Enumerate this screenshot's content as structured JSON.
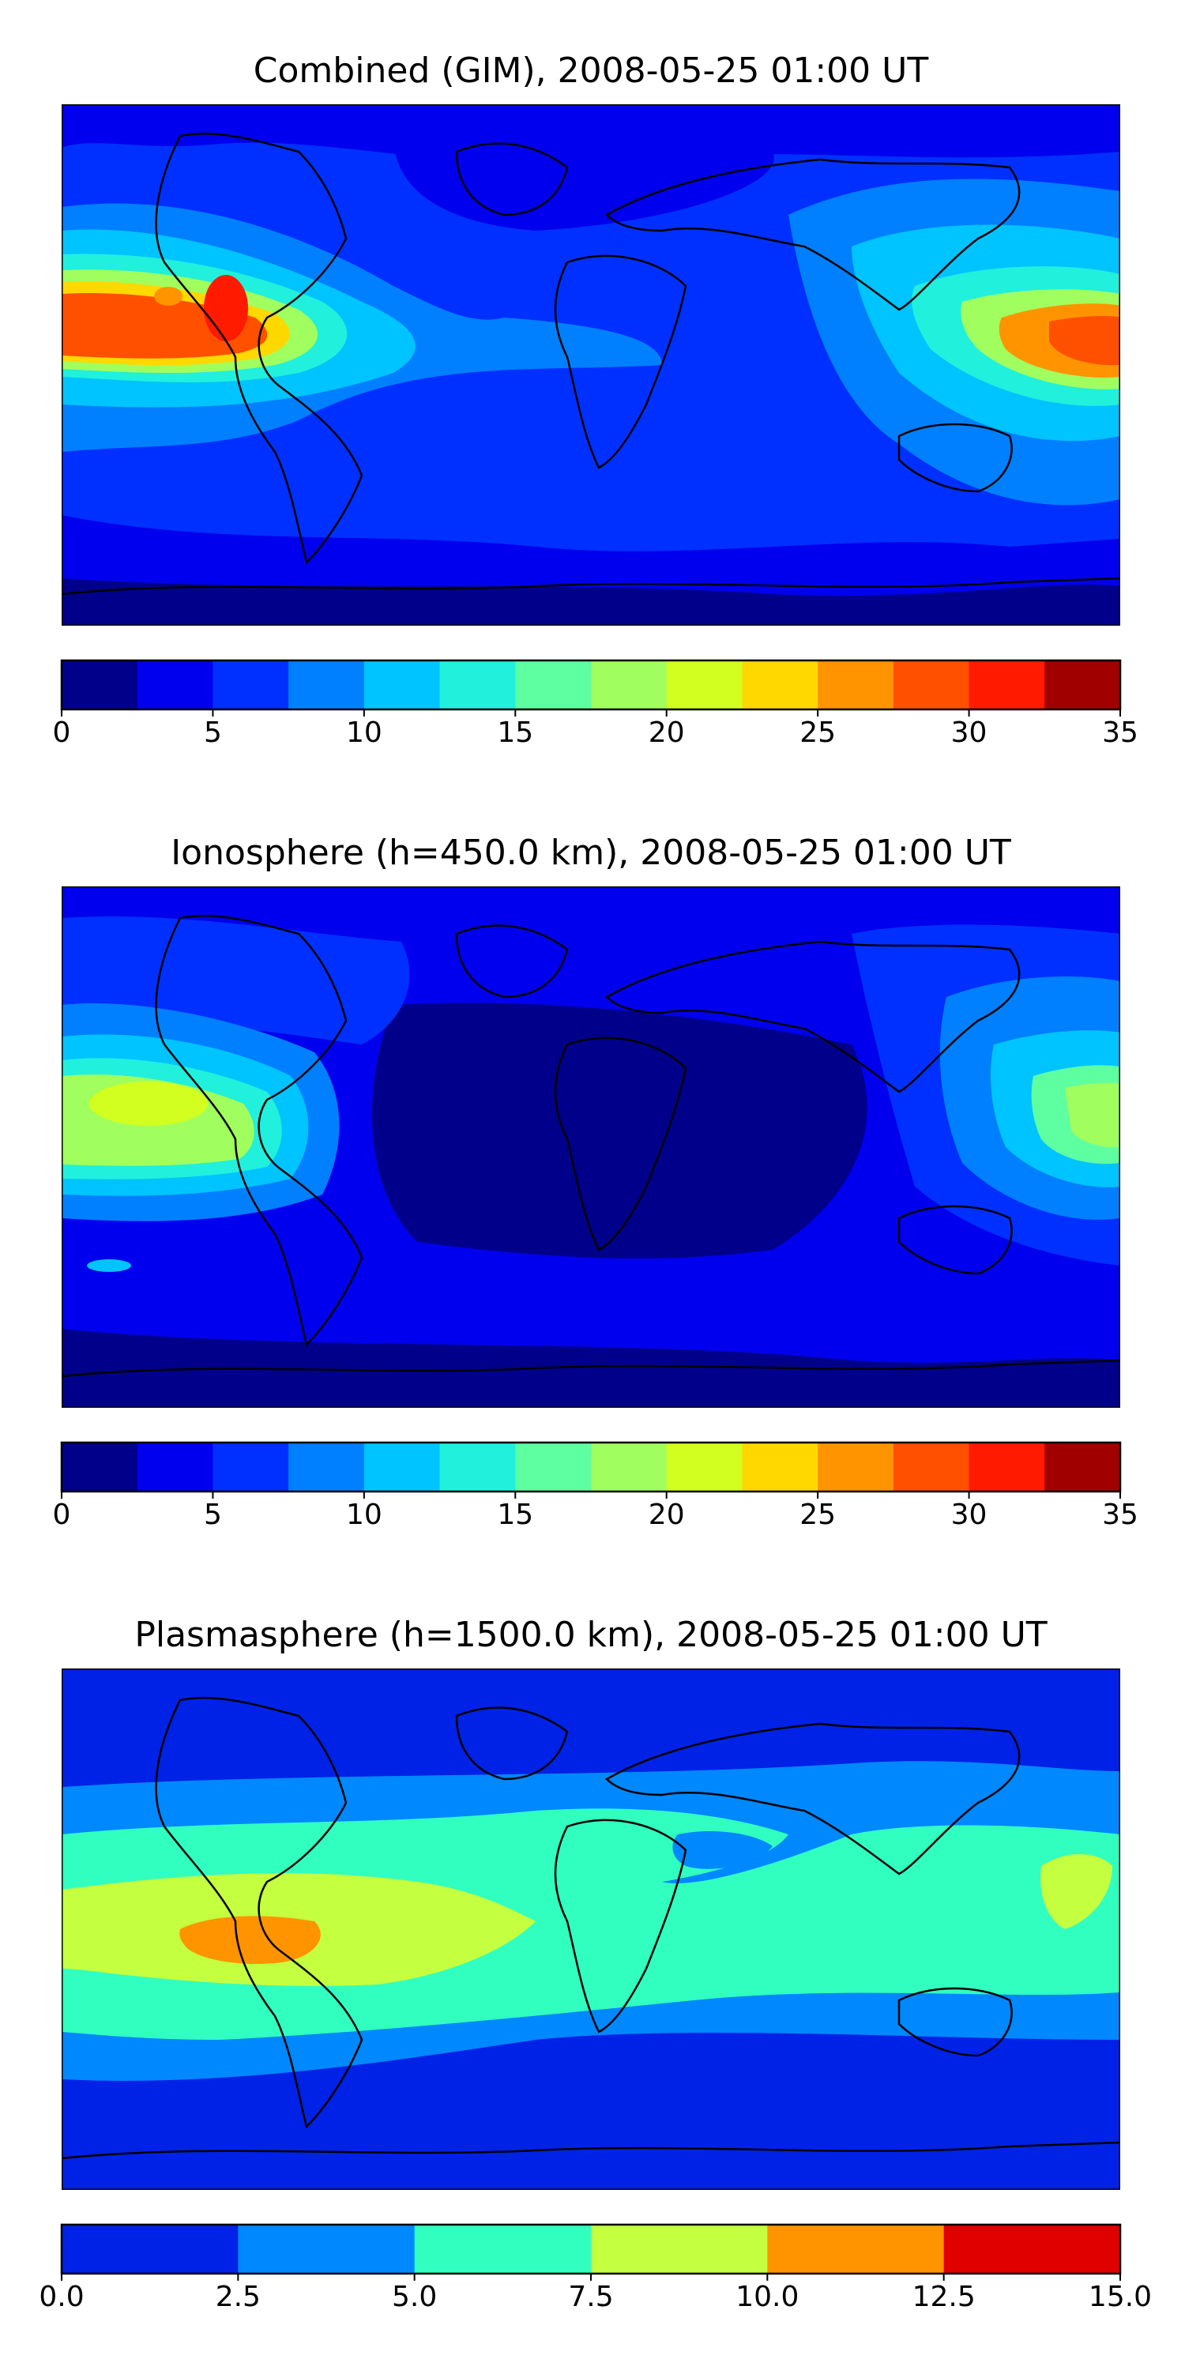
{
  "panels": [
    {
      "title": "Combined (GIM), 2008-05-25 01:00 UT",
      "colorbar": {
        "min": 0,
        "max": 35,
        "boundaries": [
          0,
          2.5,
          5,
          7.5,
          10,
          12.5,
          15,
          17.5,
          20,
          22.5,
          25,
          27.5,
          30,
          32.5,
          35
        ],
        "colors": [
          "#00008b",
          "#0000ee",
          "#0030ff",
          "#0080ff",
          "#00c4ff",
          "#20f0dc",
          "#5effa0",
          "#a0ff5e",
          "#d2ff20",
          "#ffd800",
          "#ff9400",
          "#ff5000",
          "#ff1a00",
          "#a00000"
        ],
        "ticks": [
          0,
          5,
          10,
          15,
          20,
          25,
          30,
          35
        ],
        "tick_labels": [
          "0",
          "5",
          "10",
          "15",
          "20",
          "25",
          "30",
          "35"
        ]
      }
    },
    {
      "title": "Ionosphere  (h=450.0 km), 2008-05-25 01:00 UT",
      "colorbar": {
        "min": 0,
        "max": 35,
        "boundaries": [
          0,
          2.5,
          5,
          7.5,
          10,
          12.5,
          15,
          17.5,
          20,
          22.5,
          25,
          27.5,
          30,
          32.5,
          35
        ],
        "colors": [
          "#00008b",
          "#0000ee",
          "#0030ff",
          "#0080ff",
          "#00c4ff",
          "#20f0dc",
          "#5effa0",
          "#a0ff5e",
          "#d2ff20",
          "#ffd800",
          "#ff9400",
          "#ff5000",
          "#ff1a00",
          "#a00000"
        ],
        "ticks": [
          0,
          5,
          10,
          15,
          20,
          25,
          30,
          35
        ],
        "tick_labels": [
          "0",
          "5",
          "10",
          "15",
          "20",
          "25",
          "30",
          "35"
        ]
      }
    },
    {
      "title": "Plasmasphere (h=1500.0 km), 2008-05-25 01:00 UT",
      "colorbar": {
        "min": 0,
        "max": 15,
        "boundaries": [
          0,
          2.5,
          5,
          7.5,
          10,
          12.5,
          15
        ],
        "colors": [
          "#0022e6",
          "#0088ff",
          "#30ffc0",
          "#c4ff40",
          "#ff9400",
          "#e00000"
        ],
        "ticks": [
          0,
          2.5,
          5,
          7.5,
          10,
          12.5,
          15
        ],
        "tick_labels": [
          "0.0",
          "2.5",
          "5.0",
          "7.5",
          "10.0",
          "12.5",
          "15.0"
        ]
      }
    }
  ]
}
